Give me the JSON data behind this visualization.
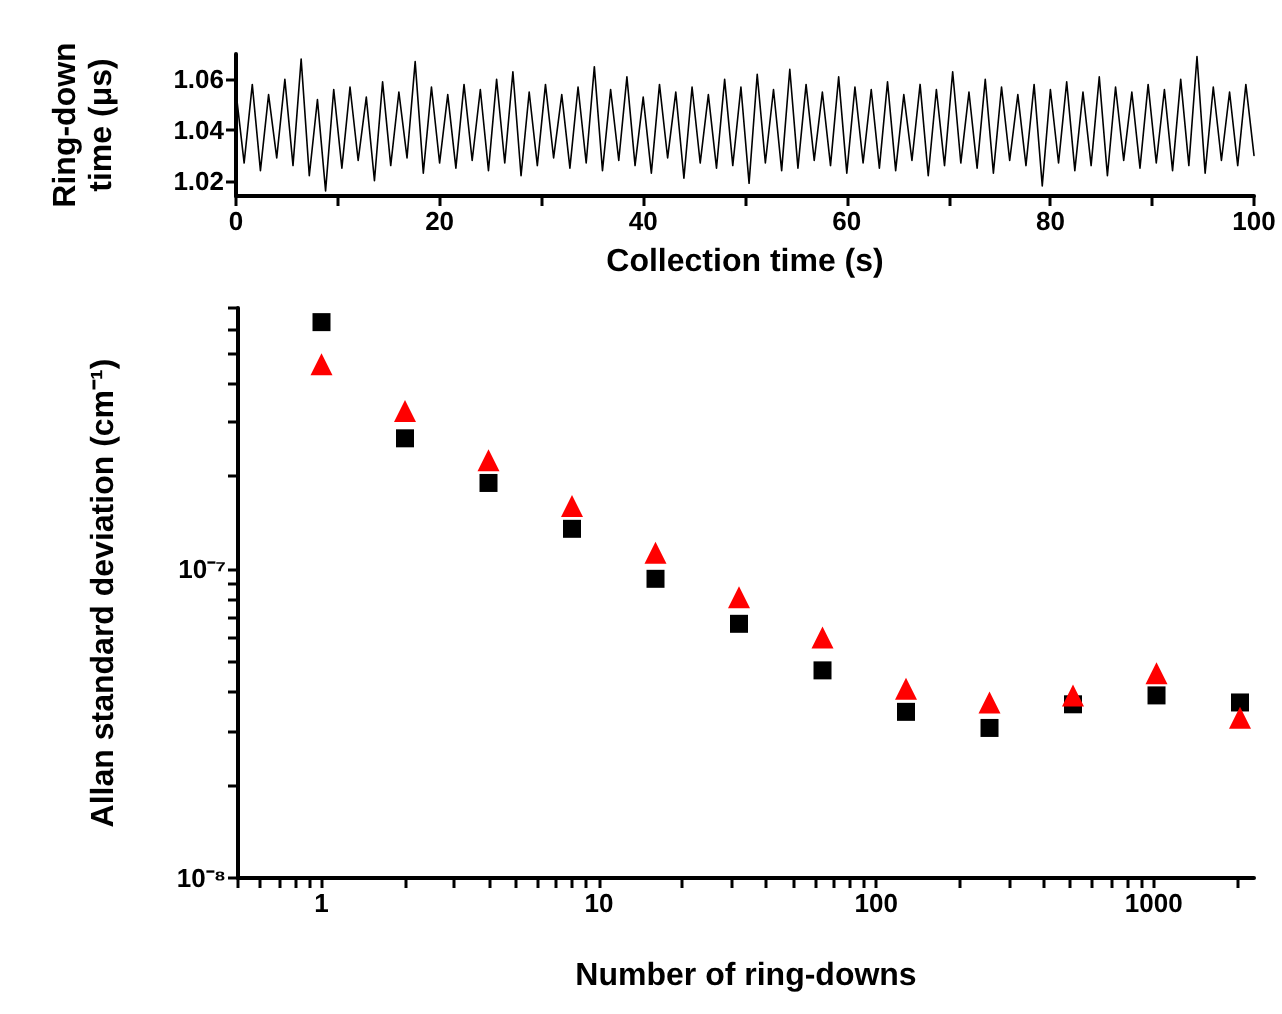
{
  "chart_data": [
    {
      "type": "line",
      "xlabel": "Collection time (s)",
      "ylabel": "Ring-down time (μs)",
      "xlim": [
        0,
        100
      ],
      "ylim": [
        1.014,
        1.07
      ],
      "xticks": [
        0,
        {
          "value": 10,
          "label": null
        },
        20,
        {
          "value": 30,
          "label": null
        },
        40,
        {
          "value": 50,
          "label": null
        },
        60,
        {
          "value": 70,
          "label": null
        },
        80,
        {
          "value": 90,
          "label": null
        },
        100
      ],
      "yticks": [
        1.02,
        1.04,
        1.06
      ],
      "grid": false,
      "marker": "none",
      "line_style": "solid",
      "x": [
        0,
        0.8,
        1.6,
        2.4,
        3.2,
        4,
        4.8,
        5.6,
        6.4,
        7.2,
        8,
        8.8,
        9.6,
        10.4,
        11.2,
        12,
        12.8,
        13.6,
        14.4,
        15.2,
        16,
        16.8,
        17.6,
        18.4,
        19.2,
        20,
        20.8,
        21.6,
        22.4,
        23.2,
        24,
        24.8,
        25.6,
        26.4,
        27.2,
        28,
        28.8,
        29.6,
        30.4,
        31.2,
        32,
        32.8,
        33.6,
        34.4,
        35.2,
        36,
        36.8,
        37.6,
        38.4,
        39.2,
        40,
        40.8,
        41.6,
        42.4,
        43.2,
        44,
        44.8,
        45.6,
        46.4,
        47.2,
        48,
        48.8,
        49.6,
        50.4,
        51.2,
        52,
        52.8,
        53.6,
        54.4,
        55.2,
        56,
        56.8,
        57.6,
        58.4,
        59.2,
        60,
        60.8,
        61.6,
        62.4,
        63.2,
        64,
        64.8,
        65.6,
        66.4,
        67.2,
        68,
        68.8,
        69.6,
        70.4,
        71.2,
        72,
        72.8,
        73.6,
        74.4,
        75.2,
        76,
        76.8,
        77.6,
        78.4,
        79.2,
        80,
        80.8,
        81.6,
        82.4,
        83.2,
        84,
        84.8,
        85.6,
        86.4,
        87.2,
        88,
        88.8,
        89.6,
        90.4,
        91.2,
        92,
        92.8,
        93.6,
        94.4,
        95.2,
        96,
        96.8,
        97.6,
        98.4,
        99.2,
        100
      ],
      "series": [
        {
          "color": "#000000",
          "values": [
            1.055,
            1.027,
            1.058,
            1.024,
            1.054,
            1.029,
            1.06,
            1.026,
            1.068,
            1.022,
            1.052,
            1.016,
            1.056,
            1.025,
            1.057,
            1.028,
            1.053,
            1.02,
            1.059,
            1.026,
            1.055,
            1.029,
            1.067,
            1.023,
            1.057,
            1.027,
            1.054,
            1.025,
            1.058,
            1.028,
            1.056,
            1.024,
            1.06,
            1.027,
            1.063,
            1.022,
            1.055,
            1.026,
            1.058,
            1.029,
            1.054,
            1.025,
            1.057,
            1.027,
            1.065,
            1.024,
            1.056,
            1.028,
            1.061,
            1.026,
            1.053,
            1.023,
            1.058,
            1.029,
            1.055,
            1.021,
            1.057,
            1.027,
            1.054,
            1.025,
            1.06,
            1.026,
            1.057,
            1.019,
            1.062,
            1.027,
            1.056,
            1.024,
            1.064,
            1.025,
            1.058,
            1.028,
            1.055,
            1.026,
            1.061,
            1.023,
            1.057,
            1.027,
            1.056,
            1.025,
            1.059,
            1.024,
            1.054,
            1.028,
            1.058,
            1.022,
            1.056,
            1.026,
            1.063,
            1.027,
            1.055,
            1.025,
            1.06,
            1.023,
            1.057,
            1.028,
            1.054,
            1.026,
            1.058,
            1.018,
            1.056,
            1.027,
            1.059,
            1.024,
            1.055,
            1.026,
            1.061,
            1.022,
            1.057,
            1.028,
            1.055,
            1.025,
            1.058,
            1.027,
            1.056,
            1.024,
            1.06,
            1.026,
            1.069,
            1.023,
            1.057,
            1.028,
            1.055,
            1.026,
            1.058,
            1.03
          ]
        }
      ]
    },
    {
      "type": "scatter",
      "xlabel": "Number of ring-downs",
      "ylabel": "Allan standard deviation (cm⁻¹)",
      "log": "xy",
      "xlim": [
        0.5,
        2300
      ],
      "ylim": [
        1e-08,
        7e-07
      ],
      "xticks": [
        {
          "value": 0.5,
          "label": null
        },
        {
          "value": 0.6,
          "label": null
        },
        {
          "value": 0.7,
          "label": null
        },
        {
          "value": 0.8,
          "label": null
        },
        {
          "value": 0.9,
          "label": null
        },
        1,
        {
          "value": 2,
          "label": null
        },
        {
          "value": 3,
          "label": null
        },
        {
          "value": 4,
          "label": null
        },
        {
          "value": 5,
          "label": null
        },
        {
          "value": 6,
          "label": null
        },
        {
          "value": 7,
          "label": null
        },
        {
          "value": 8,
          "label": null
        },
        {
          "value": 9,
          "label": null
        },
        10,
        {
          "value": 20,
          "label": null
        },
        {
          "value": 30,
          "label": null
        },
        {
          "value": 40,
          "label": null
        },
        {
          "value": 50,
          "label": null
        },
        {
          "value": 60,
          "label": null
        },
        {
          "value": 70,
          "label": null
        },
        {
          "value": 80,
          "label": null
        },
        {
          "value": 90,
          "label": null
        },
        100,
        {
          "value": 200,
          "label": null
        },
        {
          "value": 300,
          "label": null
        },
        {
          "value": 400,
          "label": null
        },
        {
          "value": 500,
          "label": null
        },
        {
          "value": 600,
          "label": null
        },
        {
          "value": 700,
          "label": null
        },
        {
          "value": 800,
          "label": null
        },
        {
          "value": 900,
          "label": null
        },
        1000,
        {
          "value": 2000,
          "label": null
        }
      ],
      "yticks": [
        {
          "value": 1e-08,
          "label": "10⁻⁸"
        },
        {
          "value": 2e-08,
          "label": null
        },
        {
          "value": 3e-08,
          "label": null
        },
        {
          "value": 4e-08,
          "label": null
        },
        {
          "value": 5e-08,
          "label": null
        },
        {
          "value": 6e-08,
          "label": null
        },
        {
          "value": 7e-08,
          "label": null
        },
        {
          "value": 8e-08,
          "label": null
        },
        {
          "value": 9e-08,
          "label": null
        },
        {
          "value": 1e-07,
          "label": "10⁻⁷"
        },
        {
          "value": 2e-07,
          "label": null
        },
        {
          "value": 3e-07,
          "label": null
        },
        {
          "value": 4e-07,
          "label": null
        },
        {
          "value": 5e-07,
          "label": null
        },
        {
          "value": 6e-07,
          "label": null
        },
        {
          "value": 7e-07,
          "label": null
        }
      ],
      "grid": false,
      "x": [
        1,
        2,
        4,
        8,
        16,
        32,
        64,
        128,
        256,
        512,
        1024,
        2048
      ],
      "series": [
        {
          "color": "#000000",
          "marker": "square",
          "values": [
            6.3e-07,
            2.65e-07,
            1.9e-07,
            1.35e-07,
            9.3e-08,
            6.65e-08,
            4.7e-08,
            3.45e-08,
            3.06e-08,
            3.65e-08,
            3.9e-08,
            3.7e-08
          ]
        },
        {
          "color": "#ff0000",
          "marker": "triangle",
          "values": [
            4.6e-07,
            3.25e-07,
            2.25e-07,
            1.6e-07,
            1.13e-07,
            8.1e-08,
            6e-08,
            4.1e-08,
            3.7e-08,
            3.9e-08,
            4.6e-08,
            3.3e-08
          ]
        }
      ]
    }
  ]
}
